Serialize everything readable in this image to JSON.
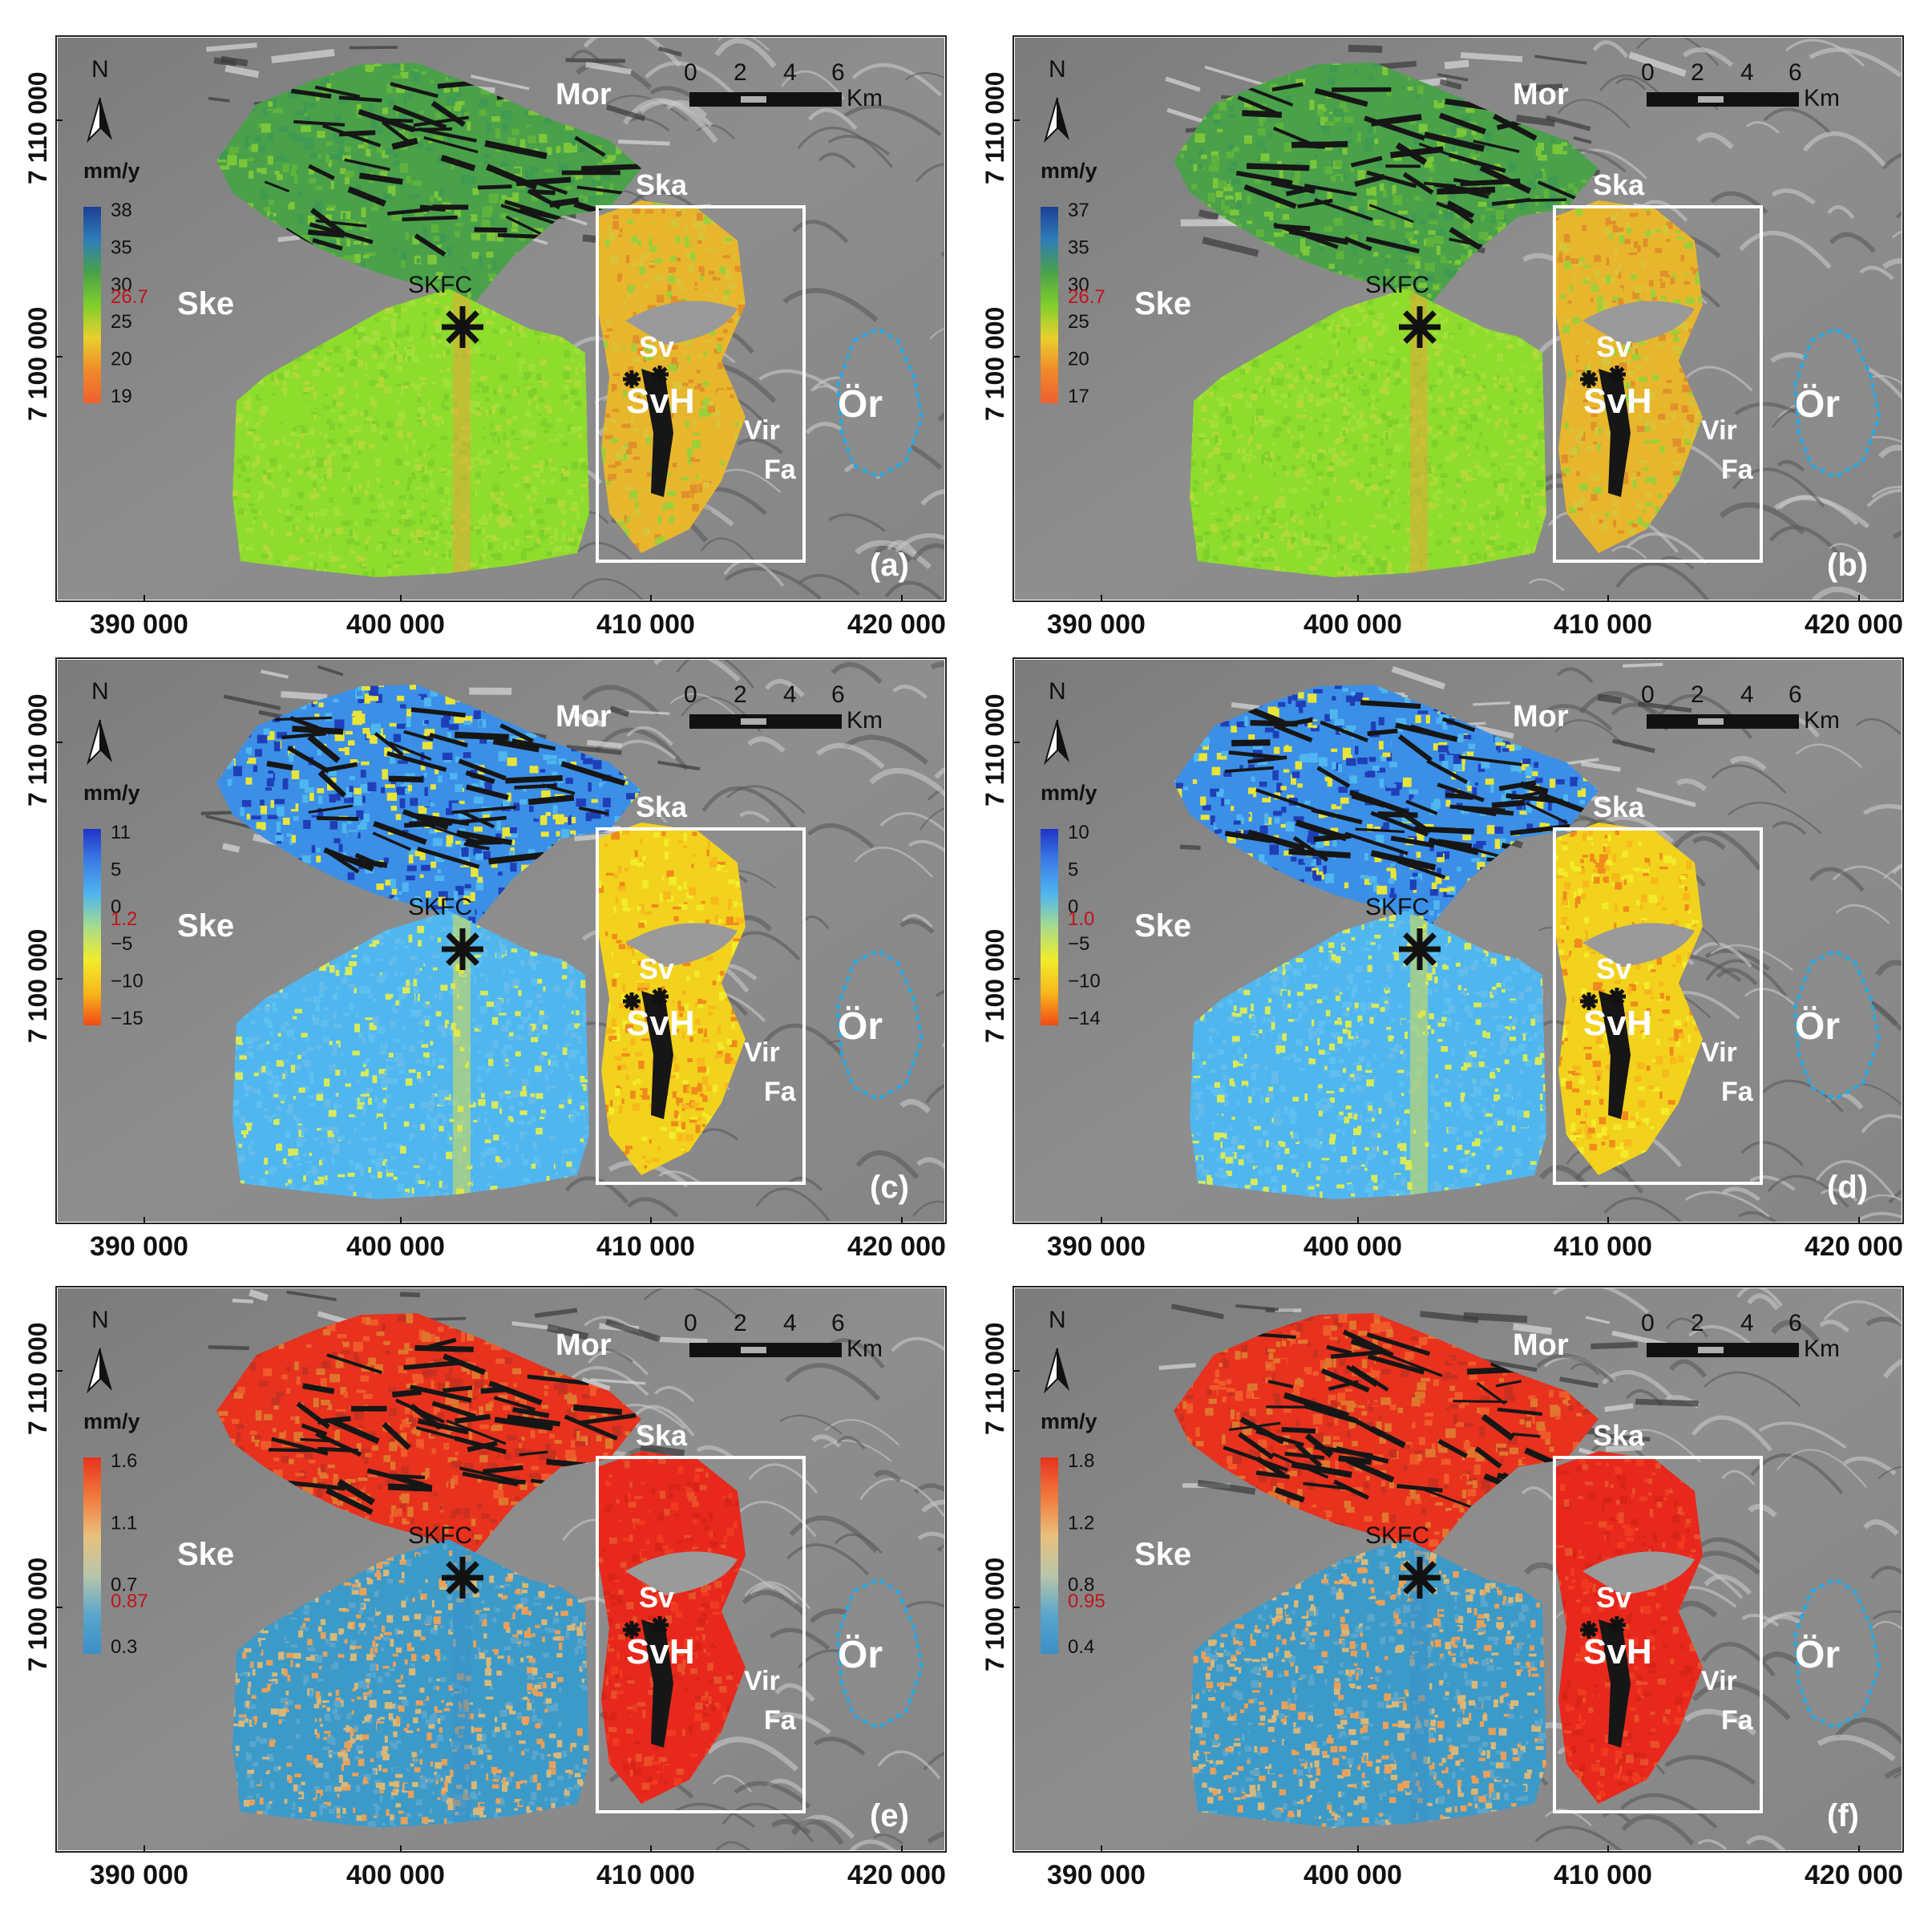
{
  "north_arrow_label": "N",
  "legend_unit": "mm/y",
  "scalebar": {
    "ticks": [
      "0",
      "2",
      "4",
      "6"
    ],
    "unit": "Km"
  },
  "x_ticks": [
    "390 000",
    "400 000",
    "410 000",
    "420 000"
  ],
  "y_ticks": [
    "7 110 000",
    "7 100 000"
  ],
  "place_names": {
    "mor": "Mor",
    "ska": "Ska",
    "ske": "Ske",
    "skfc": "SKFC",
    "sv": "Sv",
    "svh": "SvH",
    "vir": "Vir",
    "fa": "Fa",
    "or": "Ör"
  },
  "colors": {
    "map_background": "#8a8a8a",
    "aoi_box": "#ffffff",
    "lake_outline": "#29a8e0",
    "mean_value_text": "#c0141c"
  },
  "panels": [
    {
      "id": "a",
      "label": "(a)",
      "palette": "velocity_green",
      "legend": {
        "values": [
          "38",
          "35",
          "30",
          "25",
          "20",
          "19"
        ],
        "mean": "26.7",
        "gradient": [
          "#1c3f94",
          "#2e7db8",
          "#4aa14a",
          "#7fcf2a",
          "#e8d02c",
          "#f08a2a",
          "#ee6030"
        ]
      }
    },
    {
      "id": "b",
      "label": "(b)",
      "palette": "velocity_green",
      "legend": {
        "values": [
          "37",
          "35",
          "30",
          "25",
          "20",
          "17"
        ],
        "mean": "26.7",
        "gradient": [
          "#1c3f94",
          "#2e7db8",
          "#4aa14a",
          "#7fcf2a",
          "#e8d02c",
          "#f08a2a",
          "#ee6030"
        ]
      }
    },
    {
      "id": "c",
      "label": "(c)",
      "palette": "velocity_blue",
      "legend": {
        "values": [
          "11",
          "5",
          "0",
          "−5",
          "−10",
          "−15"
        ],
        "mean": "1.2",
        "gradient": [
          "#1f34c8",
          "#3c7fe6",
          "#4fb6ef",
          "#a8dc8a",
          "#f2ec2a",
          "#f7b81c",
          "#f04a14"
        ]
      }
    },
    {
      "id": "d",
      "label": "(d)",
      "palette": "velocity_blue",
      "legend": {
        "values": [
          "10",
          "5",
          "0",
          "−5",
          "−10",
          "−14"
        ],
        "mean": "1.0",
        "gradient": [
          "#1f34c8",
          "#3c7fe6",
          "#4fb6ef",
          "#a8dc8a",
          "#f2ec2a",
          "#f7b81c",
          "#f04a14"
        ]
      }
    },
    {
      "id": "e",
      "label": "(e)",
      "palette": "std_red",
      "legend": {
        "values": [
          "1.6",
          "1.1",
          "0.7",
          "0.3"
        ],
        "mean": "0.87",
        "gradient": [
          "#e8321e",
          "#f07a3c",
          "#e8c07c",
          "#b8c6a8",
          "#5aa6cc",
          "#3a8fc8"
        ]
      }
    },
    {
      "id": "f",
      "label": "(f)",
      "palette": "std_red",
      "legend": {
        "values": [
          "1.8",
          "1.2",
          "0.8",
          "0.4"
        ],
        "mean": "0.95",
        "gradient": [
          "#e8321e",
          "#f07a3c",
          "#e8c07c",
          "#b8c6a8",
          "#5aa6cc",
          "#3a8fc8"
        ]
      }
    }
  ]
}
